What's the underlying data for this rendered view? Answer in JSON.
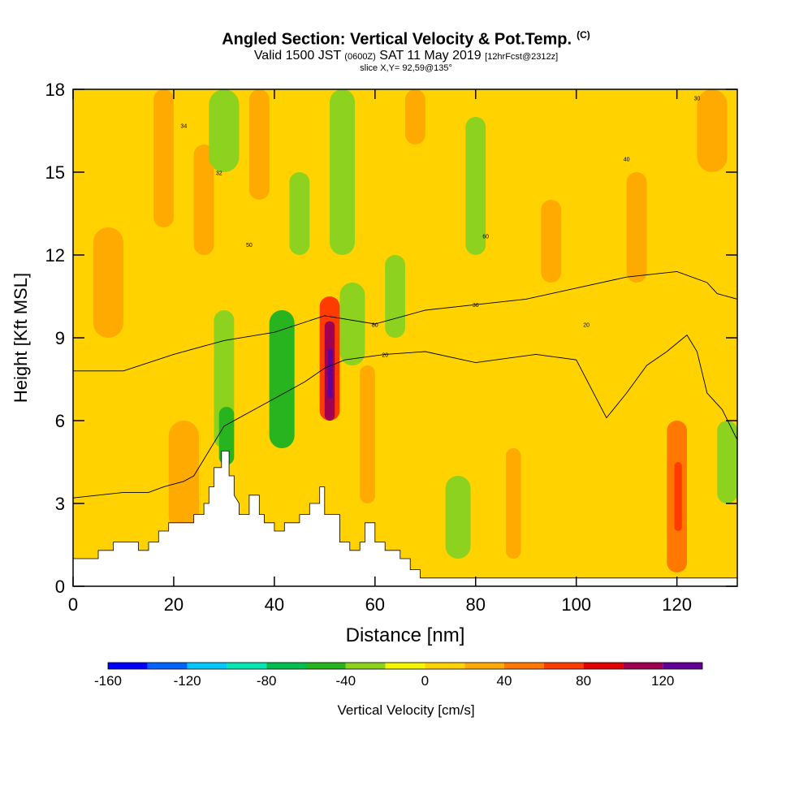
{
  "header": {
    "title": "Angled Section: Vertical Velocity & Pot.Temp.",
    "title_tag": "(C)",
    "valid_a": "Valid 1500 JST",
    "valid_small": "(0600Z)",
    "valid_b": "SAT 11 May 2019",
    "valid_fcst": "[12hrFcst@2312z]",
    "slice": "slice X,Y= 92,59@135°"
  },
  "chart_data": {
    "type": "heatmap",
    "xlabel": "Distance [nm]",
    "ylabel": "Height [Kft MSL]",
    "xlim": [
      0,
      132
    ],
    "ylim": [
      0,
      18
    ],
    "x_ticks": [
      0,
      20,
      40,
      60,
      80,
      100,
      120
    ],
    "y_ticks": [
      0,
      3,
      6,
      9,
      12,
      15,
      18
    ],
    "colorbar": {
      "label": "Vertical Velocity [cm/s]",
      "range": [
        -160,
        140
      ],
      "step": 20,
      "tick_labels": [
        "-160",
        "-120",
        "-80",
        "-40",
        "0",
        "40",
        "80",
        "120"
      ],
      "colors": [
        "#0000ff",
        "#0064ff",
        "#00c8ff",
        "#00e6b4",
        "#00be50",
        "#28b41e",
        "#8cd21e",
        "#f5f500",
        "#ffd200",
        "#ffaa00",
        "#ff7800",
        "#ff3c00",
        "#e10000",
        "#a00050",
        "#640096"
      ]
    },
    "velocity_cells": [
      {
        "x": [
          0,
          132
        ],
        "y": [
          0,
          18
        ],
        "value": 5
      },
      {
        "x": [
          4,
          10
        ],
        "y": [
          9,
          13
        ],
        "value": 25
      },
      {
        "x": [
          16,
          20
        ],
        "y": [
          13,
          18
        ],
        "value": 25
      },
      {
        "x": [
          19,
          25
        ],
        "y": [
          2,
          6
        ],
        "value": 30
      },
      {
        "x": [
          24,
          28
        ],
        "y": [
          12,
          16
        ],
        "value": 25
      },
      {
        "x": [
          27,
          33
        ],
        "y": [
          15,
          18
        ],
        "value": -30
      },
      {
        "x": [
          28,
          32
        ],
        "y": [
          5,
          10
        ],
        "value": -40
      },
      {
        "x": [
          29,
          32
        ],
        "y": [
          4.4,
          6.5
        ],
        "value": -60
      },
      {
        "x": [
          35,
          39
        ],
        "y": [
          14,
          18
        ],
        "value": 25
      },
      {
        "x": [
          39,
          44
        ],
        "y": [
          5,
          10
        ],
        "value": -45
      },
      {
        "x": [
          43,
          47
        ],
        "y": [
          12,
          15
        ],
        "value": -25
      },
      {
        "x": [
          49,
          53
        ],
        "y": [
          6,
          10.5
        ],
        "value": 70
      },
      {
        "x": [
          50,
          52
        ],
        "y": [
          6,
          9.6
        ],
        "value": 100
      },
      {
        "x": [
          50.6,
          51.6
        ],
        "y": [
          6.8,
          8.6
        ],
        "value": 120
      },
      {
        "x": [
          51,
          56
        ],
        "y": [
          12,
          18
        ],
        "value": -30
      },
      {
        "x": [
          53,
          58
        ],
        "y": [
          8,
          11
        ],
        "value": -30
      },
      {
        "x": [
          57,
          60
        ],
        "y": [
          3,
          8
        ],
        "value": 25
      },
      {
        "x": [
          62,
          66
        ],
        "y": [
          9,
          12
        ],
        "value": -30
      },
      {
        "x": [
          66,
          70
        ],
        "y": [
          16,
          18
        ],
        "value": 25
      },
      {
        "x": [
          74,
          79
        ],
        "y": [
          1,
          4
        ],
        "value": -30
      },
      {
        "x": [
          78,
          82
        ],
        "y": [
          12,
          17
        ],
        "value": -25
      },
      {
        "x": [
          86,
          89
        ],
        "y": [
          1,
          5
        ],
        "value": 30
      },
      {
        "x": [
          93,
          97
        ],
        "y": [
          11,
          14
        ],
        "value": 25
      },
      {
        "x": [
          110,
          114
        ],
        "y": [
          11,
          15
        ],
        "value": 25
      },
      {
        "x": [
          118,
          122
        ],
        "y": [
          0.5,
          6
        ],
        "value": 45
      },
      {
        "x": [
          119.5,
          121
        ],
        "y": [
          2,
          4.5
        ],
        "value": 75
      },
      {
        "x": [
          124,
          130
        ],
        "y": [
          15,
          18
        ],
        "value": 30
      },
      {
        "x": [
          128,
          132
        ],
        "y": [
          3,
          6
        ],
        "value": -30
      }
    ],
    "terrain": {
      "x": [
        0,
        5,
        5,
        8,
        8,
        13,
        13,
        15,
        15,
        17,
        17,
        19,
        19,
        24,
        24,
        26,
        26,
        27,
        27,
        28,
        28,
        29.5,
        29.5,
        31,
        31,
        32,
        32,
        33,
        33,
        35,
        35,
        37,
        37,
        38,
        38,
        40,
        40,
        42,
        42,
        45,
        45,
        47,
        47,
        49,
        49,
        50,
        50,
        53,
        53,
        55,
        55,
        57,
        57,
        58,
        58,
        60,
        60,
        62,
        62,
        65,
        65,
        67,
        67,
        69,
        69,
        71,
        71,
        132
      ],
      "height": [
        1,
        1,
        1.3,
        1.3,
        1.6,
        1.6,
        1.3,
        1.3,
        1.6,
        1.6,
        2,
        2,
        2.3,
        2.3,
        2.6,
        2.6,
        3,
        3,
        3.6,
        3.6,
        4.3,
        4.3,
        4.9,
        4.9,
        4,
        4,
        3.3,
        3,
        2.6,
        2.6,
        3.3,
        3.3,
        2.6,
        2.6,
        2.3,
        2.3,
        2,
        2,
        2.3,
        2.3,
        2.6,
        2.6,
        3,
        3,
        3.6,
        3.6,
        2.6,
        2.6,
        1.6,
        1.6,
        1.3,
        1.3,
        1.6,
        1.6,
        2.3,
        2.3,
        1.6,
        1.6,
        1.3,
        1.3,
        1,
        1,
        0.6,
        0.6,
        0.3,
        0.3,
        0.3,
        0.3
      ]
    },
    "theta_contours": [
      {
        "label": "20",
        "x": [
          0,
          10,
          15,
          18,
          22,
          24,
          26,
          30,
          34,
          38,
          42,
          46,
          50,
          54,
          62,
          70,
          80,
          92,
          100,
          106,
          110,
          114,
          118,
          122,
          124,
          126,
          129,
          132
        ],
        "height": [
          3.2,
          3.4,
          3.4,
          3.6,
          3.8,
          4.0,
          4.6,
          5.8,
          6.2,
          6.6,
          7.0,
          7.4,
          7.9,
          8.2,
          8.4,
          8.5,
          8.1,
          8.4,
          8.2,
          6.1,
          7.0,
          8.0,
          8.5,
          9.1,
          8.5,
          7.0,
          6.4,
          5.3
        ]
      },
      {
        "label": "36",
        "x": [
          0,
          10,
          20,
          30,
          40,
          50,
          60,
          70,
          80,
          90,
          100,
          110,
          120,
          126,
          128,
          132
        ],
        "height": [
          7.8,
          7.8,
          8.4,
          8.9,
          9.2,
          9.8,
          9.5,
          10.0,
          10.2,
          10.4,
          10.8,
          11.2,
          11.4,
          11.0,
          10.6,
          10.4
        ]
      }
    ],
    "theta_labels": [
      "34",
      "32",
      "50",
      "80",
      "60",
      "40",
      "30",
      "20"
    ]
  }
}
